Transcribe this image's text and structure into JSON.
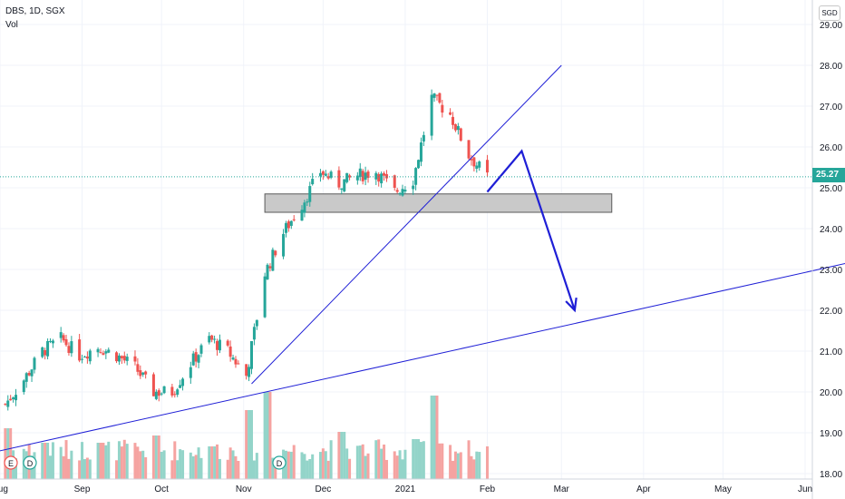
{
  "header": {
    "symbol": "DBS, 1D, SGX",
    "volume_label": "Vol",
    "currency": "SGD"
  },
  "last_price": "25.27",
  "colors": {
    "up": "#26a69a",
    "down": "#ef5350",
    "vol_up": "#93d4c9",
    "vol_down": "#f5a3a1",
    "trendline": "#1f1fd6",
    "grid": "#f0f3fa",
    "support_zone_fill": "#c9c9c9",
    "support_zone_stroke": "#5a5a5a"
  },
  "event_markers": [
    "E",
    "D",
    "D"
  ],
  "chart_data": {
    "type": "candlestick",
    "title": "",
    "xlabel": "",
    "ylabel": "",
    "ylim": [
      18.0,
      29.3
    ],
    "yticks": [
      29.0,
      28.0,
      27.0,
      26.0,
      25.0,
      24.0,
      23.0,
      22.0,
      21.0,
      20.0,
      19.0,
      18.0
    ],
    "ytick_labels": [
      "29.00",
      "28.00",
      "27.00",
      "26.00",
      "25.00",
      "24.00",
      "23.00",
      "22.00",
      "21.00",
      "20.00",
      "19.00",
      "18.00"
    ],
    "xticks": [
      "Aug",
      "Sep",
      "Oct",
      "Nov",
      "Dec",
      "2021",
      "Feb",
      "Mar",
      "Apr",
      "May",
      "Jun"
    ],
    "xtick_months": [
      "2020-08",
      "2020-09",
      "2020-10",
      "2020-11",
      "2020-12",
      "2021-01",
      "2021-02",
      "2021-03",
      "2021-04",
      "2021-05",
      "2021-06"
    ],
    "grid": true,
    "legend": "none",
    "close_series": [
      [
        "2020-08-03",
        19.7
      ],
      [
        "2020-08-10",
        20.3
      ],
      [
        "2020-08-17",
        21.0
      ],
      [
        "2020-08-24",
        21.3
      ],
      [
        "2020-08-31",
        20.9
      ],
      [
        "2020-09-07",
        21.1
      ],
      [
        "2020-09-14",
        20.9
      ],
      [
        "2020-09-21",
        20.6
      ],
      [
        "2020-09-28",
        20.0
      ],
      [
        "2020-10-05",
        20.0
      ],
      [
        "2020-10-12",
        20.7
      ],
      [
        "2020-10-19",
        21.3
      ],
      [
        "2020-10-26",
        21.0
      ],
      [
        "2020-11-02",
        20.4
      ],
      [
        "2020-11-09",
        22.9
      ],
      [
        "2020-11-16",
        23.9
      ],
      [
        "2020-11-23",
        24.6
      ],
      [
        "2020-11-30",
        25.4
      ],
      [
        "2020-12-07",
        25.1
      ],
      [
        "2020-12-14",
        25.3
      ],
      [
        "2020-12-21",
        25.4
      ],
      [
        "2020-12-28",
        24.9
      ],
      [
        "2021-01-04",
        25.2
      ],
      [
        "2021-01-11",
        27.2
      ],
      [
        "2021-01-18",
        26.8
      ],
      [
        "2021-01-25",
        25.8
      ],
      [
        "2021-02-01",
        25.27
      ]
    ],
    "volume_series": [
      [
        "2020-08-03",
        1.4
      ],
      [
        "2020-08-17",
        1.0
      ],
      [
        "2020-09-07",
        1.0
      ],
      [
        "2020-09-28",
        1.2
      ],
      [
        "2020-10-19",
        0.9
      ],
      [
        "2020-11-02",
        1.9
      ],
      [
        "2020-11-09",
        2.4
      ],
      [
        "2020-12-07",
        1.3
      ],
      [
        "2021-01-04",
        1.1
      ],
      [
        "2021-01-11",
        2.3
      ],
      [
        "2021-02-01",
        0.9
      ]
    ],
    "support_zone": {
      "from": "2020-11-09",
      "to": "2021-03-20",
      "low": 24.4,
      "high": 24.85
    },
    "trendlines": [
      {
        "from": [
          "2020-11-04",
          20.2
        ],
        "to": [
          "2021-03-01",
          28.0
        ]
      },
      {
        "from": [
          "2020-07-28",
          18.5
        ],
        "to": [
          "2021-06-20",
          23.2
        ]
      }
    ],
    "projection_path": [
      [
        "2021-02-01",
        24.9
      ],
      [
        "2021-02-14",
        25.9
      ],
      [
        "2021-03-06",
        22.0
      ]
    ],
    "last_price": 25.27
  }
}
